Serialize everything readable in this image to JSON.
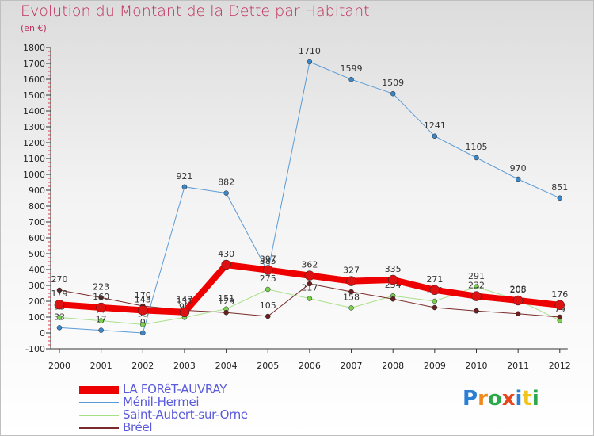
{
  "header": {
    "title": "Evolution du Montant de la Dette par Habitant",
    "subtitle": "(en €)"
  },
  "logo": {
    "text": "Proxiti",
    "colors": [
      "#2a7fd4",
      "#f08a1c",
      "#2aa84a",
      "#e8451c",
      "#2a7fd4",
      "#f0c419",
      "#2aa84a"
    ]
  },
  "chart_data": {
    "type": "line",
    "x": [
      "2000",
      "2001",
      "2002",
      "2003",
      "2004",
      "2005",
      "2006",
      "2007",
      "2008",
      "2009",
      "2010",
      "2011",
      "2012"
    ],
    "ylim": [
      -100,
      1800
    ],
    "yticks": [
      -100,
      0,
      100,
      200,
      300,
      400,
      500,
      600,
      700,
      800,
      900,
      1000,
      1100,
      1200,
      1300,
      1400,
      1500,
      1600,
      1700,
      1800
    ],
    "grid": false,
    "legend_position": "bottom-left",
    "series": [
      {
        "name": "Ménil-Hermei",
        "color": "#5b9bd5",
        "marker": "#3a86c8",
        "width": 1,
        "values": [
          33,
          17,
          0,
          921,
          882,
          385,
          1710,
          1599,
          1509,
          1241,
          1105,
          970,
          851
        ],
        "labels": [
          "33",
          "17",
          "0",
          "921",
          "882",
          "385",
          "1710",
          "1599",
          "1509",
          "1241",
          "1105",
          "970",
          "851"
        ]
      },
      {
        "name": "Saint-Aubert-sur-Orne",
        "color": "#a8e08a",
        "marker": "#7ad150",
        "width": 1,
        "values": [
          98,
          77,
          53,
          98,
          151,
          275,
          217,
          158,
          234,
          200,
          291,
          208,
          79
        ],
        "labels": [
          "98",
          "77",
          "53",
          "98",
          "151",
          "275",
          "217",
          "158",
          "234",
          "200",
          "291",
          "208",
          "79"
        ]
      },
      {
        "name": "Bréel",
        "color": "#7a2a2a",
        "marker": "#6b1f1f",
        "width": 1,
        "values": [
          270,
          223,
          170,
          143,
          129,
          105,
          310,
          260,
          214,
          160,
          139,
          121,
          100
        ],
        "labels": [
          "270",
          "223",
          "170",
          "143",
          "129",
          "105",
          "",
          "",
          "",
          "",
          "",
          "",
          ""
        ]
      },
      {
        "name": "LA FORêT-AUVRAY",
        "color": "#ee0000",
        "marker": "#dd1111",
        "width": 8,
        "values": [
          179,
          160,
          143,
          131,
          430,
          397,
          362,
          327,
          335,
          271,
          232,
          205,
          176
        ],
        "labels": [
          "179",
          "160",
          "143",
          "131",
          "430",
          "397",
          "362",
          "327",
          "335",
          "271",
          "232",
          "205",
          "176"
        ]
      }
    ],
    "legend_order": [
      "LA FORêT-AUVRAY",
      "Ménil-Hermei",
      "Saint-Aubert-sur-Orne",
      "Bréel"
    ]
  }
}
